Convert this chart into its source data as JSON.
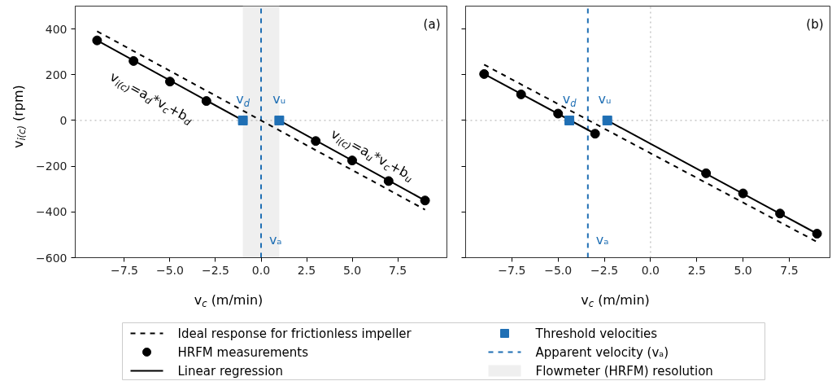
{
  "chart_data": [
    {
      "type": "line",
      "xlabel": "v$_{c}$ (m/min)",
      "ylabel": "v$_{i(c)}$ (rpm)",
      "xlim": [
        -10.2,
        10.2
      ],
      "ylim": [
        -600,
        500
      ],
      "xticks": [
        {
          "value": -7.5,
          "label": "−7.5"
        },
        {
          "value": -5,
          "label": "−5.0"
        },
        {
          "value": -2.5,
          "label": "−2.5"
        },
        {
          "value": 0,
          "label": "0.0"
        },
        {
          "value": 2.5,
          "label": "2.5"
        },
        {
          "value": 5,
          "label": "5.0"
        },
        {
          "value": 7.5,
          "label": "7.5"
        }
      ],
      "yticks": [
        {
          "value": -600,
          "label": "−600"
        },
        {
          "value": -400,
          "label": "−400"
        },
        {
          "value": -200,
          "label": "−200"
        },
        0,
        200,
        400
      ],
      "grid": false,
      "legend": "bottom",
      "series": [
        {
          "name": "Ideal response for frictionless impeller",
          "line_style": "dashed",
          "color": "#000000",
          "x": [
            -9,
            9
          ],
          "values": [
            390,
            -390
          ]
        },
        {
          "name": "HRFM measurements",
          "type": "scatter",
          "marker": "circle",
          "color": "#000000",
          "x": [
            -9,
            -7,
            -5,
            -3,
            3,
            5,
            7,
            9
          ],
          "values": [
            350,
            260,
            170,
            85,
            -90,
            -175,
            -265,
            -350
          ]
        },
        {
          "name": "Linear regression",
          "line_style": "solid",
          "color": "#000000",
          "x": [
            -9,
            -1,
            0,
            1,
            9
          ],
          "values": [
            350,
            0,
            null,
            0,
            -350
          ]
        },
        {
          "name": "Threshold velocities",
          "type": "scatter",
          "marker": "square",
          "color": "#1f6fb4",
          "x": [
            -1,
            1
          ],
          "values": [
            0,
            0
          ]
        }
      ],
      "ref_lines": [
        {
          "axis": "x",
          "value": 0,
          "label": "Apparent velocity (vₐ)",
          "color": "#1f6fb4",
          "line_style": "dashed"
        },
        {
          "axis": "y",
          "value": 0,
          "color": "#aaaaaa",
          "line_style": "dotted"
        }
      ],
      "bands": [
        {
          "axis": "x",
          "from": -1,
          "to": 1,
          "label": "Flowmeter (HRFM) resolution",
          "color": "#efefef"
        }
      ],
      "annotations": [
        "(a)",
        "v$_{d}$",
        "vᵤ",
        "vₐ",
        "v$_{i(c)}$=a$_{d}$*v$_{c}$+b$_{d}$",
        "v$_{i(c)}$=a$_{u}$*v$_{c}$+b$_{u}$"
      ]
    },
    {
      "type": "line",
      "xlabel": "v$_{c}$ (m/min)",
      "xlim": [
        -10,
        9.7
      ],
      "ylim": [
        -600,
        500
      ],
      "xticks": [
        {
          "value": -7.5,
          "label": "−7.5"
        },
        {
          "value": -5,
          "label": "−5.0"
        },
        {
          "value": -2.5,
          "label": "−2.5"
        },
        {
          "value": 0,
          "label": "0.0"
        },
        {
          "value": 2.5,
          "label": "2.5"
        },
        {
          "value": 5,
          "label": "5.0"
        },
        {
          "value": 7.5,
          "label": "7.5"
        }
      ],
      "yticks": [
        {
          "value": -600,
          "label": null
        },
        {
          "value": -400,
          "label": null
        },
        {
          "value": -200,
          "label": null
        },
        {
          "value": 0,
          "label": null
        },
        {
          "value": 200,
          "label": null
        },
        {
          "value": 400,
          "label": null
        }
      ],
      "tick_labels": "x",
      "grid": false,
      "series": [
        {
          "line_style": "dashed",
          "color": "#000000",
          "x": [
            -9,
            9
          ],
          "values": [
            244,
            -531
          ]
        },
        {
          "type": "scatter",
          "marker": "circle",
          "color": "#000000",
          "x": [
            -9,
            -7,
            -5,
            -3,
            3,
            5,
            7,
            9
          ],
          "values": [
            203,
            114,
            30,
            -58,
            -231,
            -319,
            -407,
            -495
          ]
        },
        {
          "line_style": "solid",
          "color": "#000000",
          "x": [
            -9,
            -3,
            -2.7,
            -2.34,
            9
          ],
          "values": [
            203,
            -58,
            null,
            0,
            -495
          ]
        },
        {
          "type": "scatter",
          "marker": "square",
          "color": "#1f6fb4",
          "x": [
            -4.39,
            -2.34
          ],
          "values": [
            0,
            0
          ]
        }
      ],
      "ref_lines": [
        {
          "axis": "x",
          "value": -3.39,
          "color": "#1f6fb4",
          "line_style": "dashed"
        },
        {
          "axis": "y",
          "value": 0,
          "color": "#aaaaaa",
          "line_style": "dotted"
        },
        {
          "axis": "x",
          "value": 0,
          "color": "#aaaaaa",
          "line_style": "dotted"
        }
      ],
      "annotations": [
        "(b)",
        "v$_{d}$",
        "vᵤ",
        "vₐ"
      ]
    }
  ]
}
